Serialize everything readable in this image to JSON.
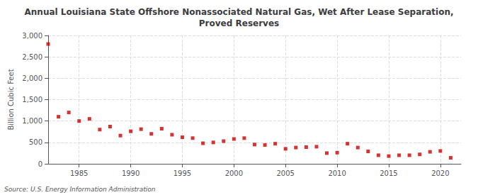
{
  "chart_data": {
    "type": "scatter",
    "title": "Annual Louisiana State Offshore Nonassociated Natural Gas, Wet After Lease Separation,\nProved Reserves",
    "ylabel": "Billion Cubic Feet",
    "source": "Source: U.S. Energy Information Administration",
    "x": [
      1982,
      1983,
      1984,
      1985,
      1986,
      1987,
      1988,
      1989,
      1990,
      1991,
      1992,
      1993,
      1994,
      1995,
      1996,
      1997,
      1998,
      1999,
      2000,
      2001,
      2002,
      2003,
      2004,
      2005,
      2006,
      2007,
      2008,
      2009,
      2010,
      2011,
      2012,
      2013,
      2014,
      2015,
      2016,
      2017,
      2018,
      2019,
      2020,
      2021
    ],
    "values": [
      2800,
      1100,
      1200,
      1000,
      1050,
      800,
      870,
      660,
      760,
      810,
      700,
      820,
      680,
      620,
      600,
      480,
      500,
      530,
      580,
      600,
      450,
      440,
      470,
      350,
      380,
      390,
      400,
      250,
      260,
      470,
      380,
      290,
      200,
      180,
      200,
      200,
      220,
      280,
      300,
      140
    ],
    "color": "#cc0000",
    "marker": "square",
    "xlim": [
      1982,
      2022
    ],
    "xticks": [
      1985,
      1990,
      1995,
      2000,
      2005,
      2010,
      2015,
      2020
    ],
    "ylim": [
      0,
      3000
    ],
    "yticks": [
      0,
      500,
      {
        "value": 1000,
        "label": "1,000"
      },
      {
        "value": 1500,
        "label": "1,500"
      },
      {
        "value": 2000,
        "label": "2,000"
      },
      {
        "value": 2500,
        "label": "2,500"
      },
      {
        "value": 3000,
        "label": "3,000"
      }
    ],
    "grid": true
  }
}
